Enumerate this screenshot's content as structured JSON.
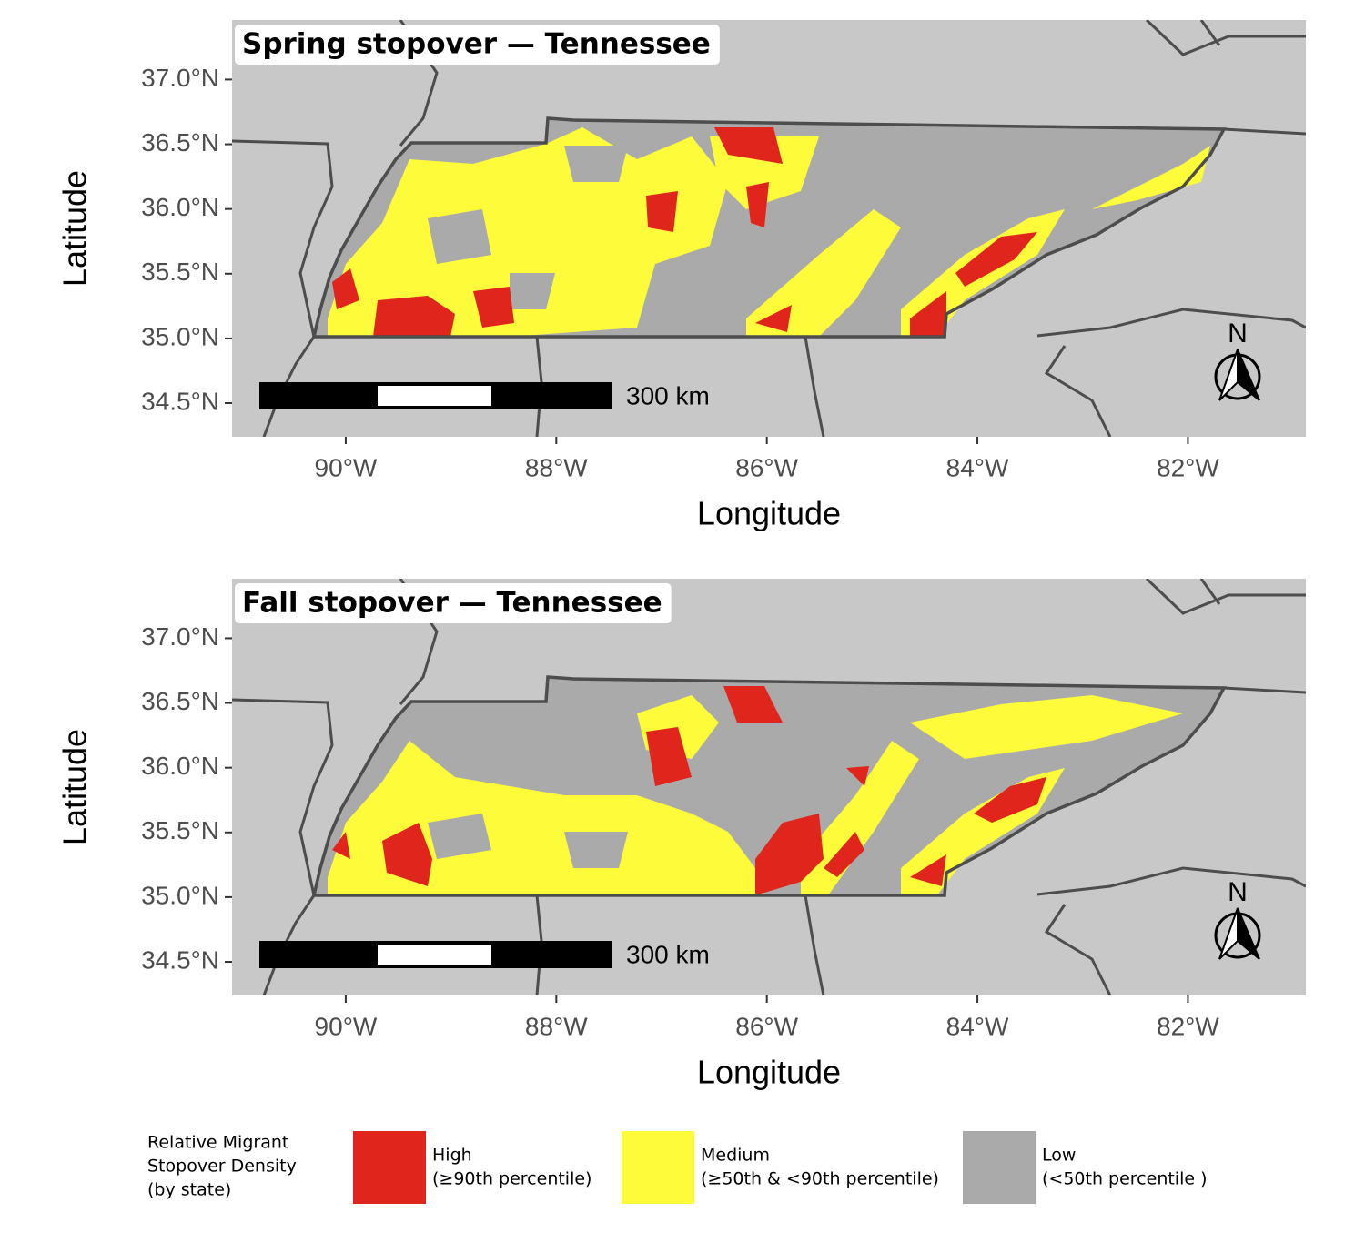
{
  "maps": [
    {
      "title": "Spring stopover — Tennessee",
      "x_label": "Longitude",
      "y_label": "Latitude",
      "xlim": [
        -91.08,
        -80.88
      ],
      "ylim": [
        34.24,
        37.46
      ],
      "xticks": [
        {
          "value": -90,
          "label": "90°W"
        },
        {
          "value": -88,
          "label": "88°W"
        },
        {
          "value": -86,
          "label": "86°W"
        },
        {
          "value": -84,
          "label": "84°W"
        },
        {
          "value": -82,
          "label": "82°W"
        }
      ],
      "yticks": [
        {
          "value": 34.5,
          "label": "34.5°N"
        },
        {
          "value": 35.0,
          "label": "35.0°N"
        },
        {
          "value": 35.5,
          "label": "35.5°N"
        },
        {
          "value": 36.0,
          "label": "36.0°N"
        },
        {
          "value": 36.5,
          "label": "36.5°N"
        },
        {
          "value": 37.0,
          "label": "37.0°N"
        }
      ],
      "scale_label": "300 km",
      "north": "N"
    },
    {
      "title": "Fall stopover — Tennessee",
      "x_label": "Longitude",
      "y_label": "Latitude",
      "xlim": [
        -91.08,
        -80.88
      ],
      "ylim": [
        34.24,
        37.46
      ],
      "xticks": [
        {
          "value": -90,
          "label": "90°W"
        },
        {
          "value": -88,
          "label": "88°W"
        },
        {
          "value": -86,
          "label": "86°W"
        },
        {
          "value": -84,
          "label": "84°W"
        },
        {
          "value": -82,
          "label": "82°W"
        }
      ],
      "yticks": [
        {
          "value": 34.5,
          "label": "34.5°N"
        },
        {
          "value": 35.0,
          "label": "35.0°N"
        },
        {
          "value": 35.5,
          "label": "35.5°N"
        },
        {
          "value": 36.0,
          "label": "36.0°N"
        },
        {
          "value": 36.5,
          "label": "36.5°N"
        },
        {
          "value": 37.0,
          "label": "37.0°N"
        }
      ],
      "scale_label": "300 km",
      "north": "N"
    }
  ],
  "legend": {
    "title": [
      "Relative Migrant",
      "Stopover Density",
      "(by state)"
    ],
    "items": [
      {
        "name": "High",
        "detail": "(≥90th percentile)",
        "color": "#e0261c"
      },
      {
        "name": "Medium",
        "detail": "(≥50th & <90th percentile)",
        "color": "#fdfb3a"
      },
      {
        "name": "Low",
        "detail": "(<50th percentile )",
        "color": "#aaaaaa"
      }
    ]
  }
}
